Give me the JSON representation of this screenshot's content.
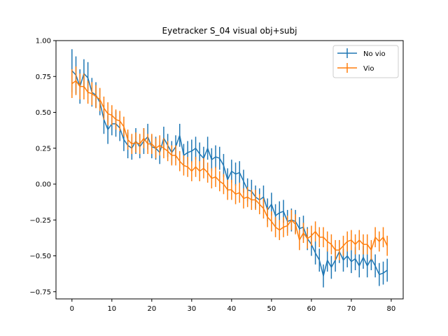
{
  "chart_data": {
    "type": "line",
    "title": "Eyetracker S_04 visual obj+subj",
    "xlabel": "",
    "ylabel": "",
    "xlim": [
      -4,
      83
    ],
    "ylim": [
      -0.8,
      1.0
    ],
    "xticks": [
      0,
      10,
      20,
      30,
      40,
      50,
      60,
      70,
      80
    ],
    "yticks": [
      -0.75,
      -0.5,
      -0.25,
      0.0,
      0.25,
      0.5,
      0.75,
      1.0
    ],
    "ytick_labels": [
      "−0.75",
      "−0.50",
      "−0.25",
      "0.00",
      "0.25",
      "0.50",
      "0.75",
      "1.00"
    ],
    "grid": false,
    "legend_position": "top-right",
    "series": [
      {
        "name": "No vio",
        "color": "#1f77b4",
        "x": [
          0,
          1,
          2,
          3,
          4,
          5,
          6,
          7,
          8,
          9,
          10,
          11,
          12,
          13,
          14,
          15,
          16,
          17,
          18,
          19,
          20,
          21,
          22,
          23,
          24,
          25,
          26,
          27,
          28,
          29,
          30,
          31,
          32,
          33,
          34,
          35,
          36,
          37,
          38,
          39,
          40,
          41,
          42,
          43,
          44,
          45,
          46,
          47,
          48,
          49,
          50,
          51,
          52,
          53,
          54,
          55,
          56,
          57,
          58,
          59,
          60,
          61,
          62,
          63,
          64,
          65,
          66,
          67,
          68,
          69,
          70,
          71,
          72,
          73,
          74,
          75,
          76,
          77,
          78,
          79
        ],
        "y": [
          0.79,
          0.76,
          0.68,
          0.77,
          0.74,
          0.64,
          0.62,
          0.57,
          0.45,
          0.38,
          0.42,
          0.42,
          0.39,
          0.31,
          0.27,
          0.25,
          0.3,
          0.26,
          0.3,
          0.33,
          0.26,
          0.25,
          0.22,
          0.32,
          0.27,
          0.22,
          0.26,
          0.34,
          0.2,
          0.22,
          0.23,
          0.25,
          0.21,
          0.18,
          0.25,
          0.17,
          0.19,
          0.18,
          0.13,
          0.03,
          0.09,
          0.07,
          0.08,
          0.02,
          -0.04,
          -0.05,
          -0.09,
          -0.11,
          -0.09,
          -0.18,
          -0.14,
          -0.22,
          -0.2,
          -0.19,
          -0.26,
          -0.25,
          -0.26,
          -0.31,
          -0.3,
          -0.38,
          -0.42,
          -0.48,
          -0.53,
          -0.64,
          -0.53,
          -0.58,
          -0.53,
          -0.47,
          -0.53,
          -0.5,
          -0.54,
          -0.52,
          -0.57,
          -0.51,
          -0.57,
          -0.52,
          -0.57,
          -0.63,
          -0.62,
          -0.6
        ],
        "err": [
          0.15,
          0.13,
          0.12,
          0.1,
          0.11,
          0.1,
          0.09,
          0.09,
          0.1,
          0.1,
          0.08,
          0.09,
          0.09,
          0.08,
          0.09,
          0.08,
          0.09,
          0.08,
          0.09,
          0.09,
          0.08,
          0.08,
          0.08,
          0.08,
          0.08,
          0.08,
          0.08,
          0.08,
          0.08,
          0.08,
          0.08,
          0.08,
          0.08,
          0.08,
          0.08,
          0.08,
          0.08,
          0.08,
          0.08,
          0.08,
          0.08,
          0.08,
          0.08,
          0.08,
          0.08,
          0.08,
          0.08,
          0.08,
          0.08,
          0.08,
          0.08,
          0.08,
          0.08,
          0.08,
          0.08,
          0.08,
          0.08,
          0.08,
          0.08,
          0.08,
          0.08,
          0.08,
          0.08,
          0.08,
          0.08,
          0.08,
          0.08,
          0.08,
          0.08,
          0.08,
          0.08,
          0.08,
          0.08,
          0.08,
          0.08,
          0.08,
          0.08,
          0.08,
          0.08,
          0.08
        ]
      },
      {
        "name": "Vio",
        "color": "#ff7f0e",
        "x": [
          0,
          1,
          2,
          3,
          4,
          5,
          6,
          7,
          8,
          9,
          10,
          11,
          12,
          13,
          14,
          15,
          16,
          17,
          18,
          19,
          20,
          21,
          22,
          23,
          24,
          25,
          26,
          27,
          28,
          29,
          30,
          31,
          32,
          33,
          34,
          35,
          36,
          37,
          38,
          39,
          40,
          41,
          42,
          43,
          44,
          45,
          46,
          47,
          48,
          49,
          50,
          51,
          52,
          53,
          54,
          55,
          56,
          57,
          58,
          59,
          60,
          61,
          62,
          63,
          64,
          65,
          66,
          67,
          68,
          69,
          70,
          71,
          72,
          73,
          74,
          75,
          76,
          77,
          78,
          79
        ],
        "y": [
          0.7,
          0.72,
          0.68,
          0.68,
          0.64,
          0.63,
          0.61,
          0.59,
          0.53,
          0.49,
          0.48,
          0.45,
          0.44,
          0.4,
          0.31,
          0.28,
          0.29,
          0.28,
          0.32,
          0.28,
          0.28,
          0.25,
          0.27,
          0.25,
          0.23,
          0.2,
          0.2,
          0.16,
          0.13,
          0.12,
          0.09,
          0.12,
          0.09,
          0.11,
          0.08,
          0.04,
          0.05,
          0.02,
          0.0,
          -0.04,
          -0.04,
          -0.07,
          -0.06,
          -0.1,
          -0.09,
          -0.11,
          -0.11,
          -0.14,
          -0.17,
          -0.23,
          -0.26,
          -0.3,
          -0.32,
          -0.3,
          -0.29,
          -0.25,
          -0.28,
          -0.39,
          -0.34,
          -0.38,
          -0.36,
          -0.33,
          -0.37,
          -0.37,
          -0.4,
          -0.42,
          -0.46,
          -0.46,
          -0.43,
          -0.4,
          -0.39,
          -0.42,
          -0.39,
          -0.42,
          -0.42,
          -0.46,
          -0.37,
          -0.4,
          -0.37,
          -0.43
        ],
        "err": [
          0.1,
          0.1,
          0.09,
          0.09,
          0.08,
          0.08,
          0.08,
          0.08,
          0.08,
          0.08,
          0.07,
          0.07,
          0.07,
          0.07,
          0.07,
          0.07,
          0.07,
          0.07,
          0.07,
          0.07,
          0.07,
          0.07,
          0.07,
          0.07,
          0.07,
          0.07,
          0.07,
          0.07,
          0.07,
          0.07,
          0.07,
          0.07,
          0.07,
          0.07,
          0.07,
          0.07,
          0.07,
          0.07,
          0.07,
          0.07,
          0.07,
          0.07,
          0.07,
          0.07,
          0.07,
          0.07,
          0.07,
          0.07,
          0.07,
          0.07,
          0.07,
          0.07,
          0.07,
          0.07,
          0.07,
          0.07,
          0.07,
          0.07,
          0.07,
          0.07,
          0.07,
          0.07,
          0.07,
          0.07,
          0.07,
          0.07,
          0.07,
          0.07,
          0.07,
          0.07,
          0.07,
          0.07,
          0.07,
          0.07,
          0.07,
          0.07,
          0.07,
          0.07,
          0.07,
          0.07
        ]
      }
    ]
  }
}
